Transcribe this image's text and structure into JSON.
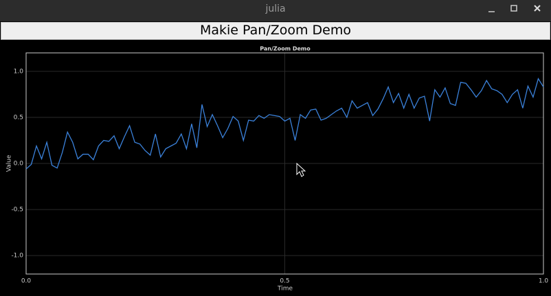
{
  "window": {
    "title": "julia"
  },
  "header": {
    "title": "Makie Pan/Zoom Demo"
  },
  "chart_data": {
    "type": "line",
    "title": "Pan/Zoom Demo",
    "x_label": "Time",
    "y_label": "Value",
    "xlim": [
      0,
      1
    ],
    "ylim": [
      -1.2,
      1.2
    ],
    "xticks": [
      {
        "value": 0,
        "label": "0.0"
      },
      0.5,
      {
        "value": 1,
        "label": "1.0"
      }
    ],
    "yticks": [
      {
        "value": -1,
        "label": "-1.0"
      },
      -0.5,
      {
        "value": 0,
        "label": "0.0"
      },
      0.5,
      {
        "value": 1,
        "label": "1.0"
      }
    ],
    "grid": true,
    "x": [
      0,
      0.01,
      0.02,
      0.03,
      0.04,
      0.05,
      0.06,
      0.07,
      0.08,
      0.09,
      0.1,
      0.11,
      0.12,
      0.13,
      0.14,
      0.15,
      0.16,
      0.17,
      0.18,
      0.19,
      0.2,
      0.21,
      0.22,
      0.23,
      0.24,
      0.25,
      0.26,
      0.27,
      0.28,
      0.29,
      0.3,
      0.31,
      0.32,
      0.33,
      0.34,
      0.35,
      0.36,
      0.37,
      0.38,
      0.39,
      0.4,
      0.41,
      0.42,
      0.43,
      0.44,
      0.45,
      0.46,
      0.47,
      0.48,
      0.49,
      0.5,
      0.51,
      0.52,
      0.53,
      0.54,
      0.55,
      0.56,
      0.57,
      0.58,
      0.59,
      0.6,
      0.61,
      0.62,
      0.63,
      0.64,
      0.65,
      0.66,
      0.67,
      0.68,
      0.69,
      0.7,
      0.71,
      0.72,
      0.73,
      0.74,
      0.75,
      0.76,
      0.77,
      0.78,
      0.79,
      0.8,
      0.81,
      0.82,
      0.83,
      0.84,
      0.85,
      0.86,
      0.87,
      0.88,
      0.89,
      0.9,
      0.91,
      0.92,
      0.93,
      0.94,
      0.95,
      0.96,
      0.97,
      0.98,
      0.99,
      1
    ],
    "series": [
      {
        "color": "#3b82db",
        "values": [
          -0.06,
          -0.01,
          0.19,
          0.05,
          0.23,
          -0.02,
          -0.05,
          0.12,
          0.34,
          0.23,
          0.05,
          0.1,
          0.1,
          0.04,
          0.19,
          0.25,
          0.24,
          0.3,
          0.16,
          0.29,
          0.41,
          0.23,
          0.21,
          0.14,
          0.09,
          0.32,
          0.07,
          0.16,
          0.19,
          0.22,
          0.32,
          0.16,
          0.43,
          0.17,
          0.64,
          0.4,
          0.53,
          0.41,
          0.28,
          0.38,
          0.51,
          0.46,
          0.25,
          0.47,
          0.46,
          0.52,
          0.49,
          0.53,
          0.52,
          0.51,
          0.46,
          0.49,
          0.25,
          0.53,
          0.49,
          0.58,
          0.59,
          0.47,
          0.49,
          0.53,
          0.57,
          0.6,
          0.5,
          0.68,
          0.6,
          0.63,
          0.66,
          0.52,
          0.59,
          0.7,
          0.83,
          0.66,
          0.76,
          0.6,
          0.75,
          0.6,
          0.71,
          0.73,
          0.46,
          0.8,
          0.72,
          0.82,
          0.65,
          0.63,
          0.88,
          0.87,
          0.8,
          0.72,
          0.79,
          0.9,
          0.81,
          0.79,
          0.75,
          0.66,
          0.75,
          0.8,
          0.6,
          0.84,
          0.72,
          0.92,
          0.83
        ]
      }
    ]
  }
}
